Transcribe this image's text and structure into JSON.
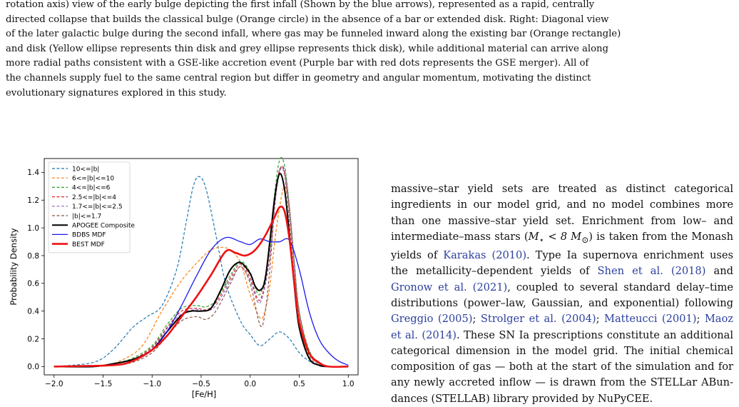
{
  "caption": {
    "lines": [
      "rotation axis) view of the early bulge depicting the first infall (Shown by the blue arrows), represented as a rapid, centrally",
      "directed collapse that builds the classical bulge (Orange circle) in the absence of a bar or extended disk. Right: Diagonal view",
      "of the later galactic bulge during the second infall, where gas may be funneled inward along the existing bar (Orange rectangle)",
      "and disk (Yellow ellipse represents thin disk and grey ellipse represents thick disk), while additional material can arrive along",
      "more radial paths consistent with a GSE-like accretion event (Purple bar with red dots represents the GSE merger). All of",
      "the channels supply fuel to the same central region but differ in geometry and angular momentum, motivating the distinct",
      "evolutionary signatures explored in this study."
    ]
  },
  "body_text": {
    "p1": "massive–star yield sets are treated as distinct categori­cal ingredients in our model grid, and no model combines more than one massive–star yield set. Enrichment from low– and intermediate–mass stars (",
    "p1_math": "M",
    "p1_sub": "⋆",
    "p1_math2": " < 8 M",
    "p1_sub2": "⊙",
    "p1b": ") is taken from the Monash yields of ",
    "c1": "Karakas",
    "c1y": " (2010)",
    "p1c": ". Type Ia supernova enrichment uses the metallicity–dependent yields of ",
    "c2": "Shen et al.",
    "c2y": " (2018)",
    "p1d": " and ",
    "c3": "Gronow et al.",
    "c3y": " (2021)",
    "p1e": ", coupled to several standard delay–time distributions (power–law, Gaussian, and exponential) following ",
    "c4": "Greg­gio",
    "c4y": " (2005)",
    "p1f": "; ",
    "c5": "Strolger et al.",
    "c5y": " (2004)",
    "p1g": "; ",
    "c6": "Matteucci",
    "c6y": " (2001)",
    "p1h": "; ",
    "c7": "Maoz et al.",
    "c7y": " (2014)",
    "p1i": ". These SN Ia prescriptions consti­tute an additional categorical dimension in the model grid. The initial chemical composition of gas — both at the start of the simulation and for any newly ac­creted inflow — is drawn from the STELLar ABun­dances (STELLAB) library provided by NuPyCEE."
  },
  "chart_data": {
    "type": "line",
    "xlabel": "[Fe/H]",
    "ylabel": "Probability Density",
    "xlim": [
      -2.1,
      1.1
    ],
    "ylim": [
      -0.06,
      1.5
    ],
    "xticks": [
      "−2.0",
      "−1.5",
      "−1.0",
      "−0.5",
      "0.0",
      "0.5",
      "1.0"
    ],
    "xtick_values": [
      -2.0,
      -1.5,
      -1.0,
      -0.5,
      0.0,
      0.5,
      1.0
    ],
    "yticks": [
      "0.0",
      "0.2",
      "0.4",
      "0.6",
      "0.8",
      "1.0",
      "1.2",
      "1.4"
    ],
    "ytick_values": [
      0.0,
      0.2,
      0.4,
      0.6,
      0.8,
      1.0,
      1.2,
      1.4
    ],
    "grid": false,
    "legend_position": "top-left",
    "series": [
      {
        "name": "10<=|b|",
        "color": "#1f77b4",
        "dashed": true,
        "width": 1.2,
        "x": [
          -2.0,
          -1.6,
          -1.4,
          -1.2,
          -1.05,
          -0.9,
          -0.75,
          -0.65,
          -0.58,
          -0.52,
          -0.45,
          -0.35,
          -0.25,
          -0.1,
          0.0,
          0.1,
          0.2,
          0.3,
          0.4,
          0.5,
          0.6,
          0.7,
          0.8,
          1.0
        ],
        "y": [
          0.0,
          0.03,
          0.12,
          0.28,
          0.36,
          0.44,
          0.7,
          1.05,
          1.3,
          1.37,
          1.28,
          0.95,
          0.6,
          0.33,
          0.23,
          0.15,
          0.2,
          0.25,
          0.2,
          0.1,
          0.04,
          0.01,
          0.0,
          0.0
        ]
      },
      {
        "name": "6<=|b|<=10",
        "color": "#ff7f0e",
        "dashed": true,
        "width": 1.2,
        "x": [
          -2.0,
          -1.5,
          -1.3,
          -1.1,
          -0.9,
          -0.7,
          -0.5,
          -0.4,
          -0.3,
          -0.2,
          -0.1,
          0.0,
          0.1,
          0.15,
          0.2,
          0.25,
          0.3,
          0.35,
          0.4,
          0.45,
          0.5,
          0.6,
          0.7,
          0.8,
          1.0
        ],
        "y": [
          0.0,
          0.01,
          0.05,
          0.15,
          0.4,
          0.62,
          0.78,
          0.84,
          0.86,
          0.84,
          0.75,
          0.52,
          0.35,
          0.4,
          0.58,
          0.9,
          1.15,
          1.3,
          1.15,
          0.75,
          0.4,
          0.1,
          0.02,
          0.0,
          0.0
        ]
      },
      {
        "name": "4<=|b|<=6",
        "color": "#2ca02c",
        "dashed": true,
        "width": 1.2,
        "x": [
          -2.0,
          -1.6,
          -1.4,
          -1.2,
          -1.0,
          -0.85,
          -0.7,
          -0.55,
          -0.45,
          -0.35,
          -0.2,
          -0.1,
          0.0,
          0.1,
          0.2,
          0.25,
          0.3,
          0.35,
          0.4,
          0.45,
          0.5,
          0.6,
          0.7,
          0.8,
          1.0
        ],
        "y": [
          0.0,
          0.0,
          0.02,
          0.06,
          0.15,
          0.3,
          0.42,
          0.44,
          0.43,
          0.48,
          0.66,
          0.76,
          0.68,
          0.52,
          0.85,
          1.25,
          1.49,
          1.45,
          1.15,
          0.75,
          0.4,
          0.12,
          0.03,
          0.0,
          0.0
        ]
      },
      {
        "name": "2.5<=|b|<=4",
        "color": "#d62728",
        "dashed": true,
        "width": 1.2,
        "x": [
          -2.0,
          -1.6,
          -1.4,
          -1.2,
          -1.0,
          -0.85,
          -0.7,
          -0.55,
          -0.45,
          -0.35,
          -0.2,
          -0.1,
          0.0,
          0.1,
          0.2,
          0.25,
          0.3,
          0.35,
          0.4,
          0.45,
          0.5,
          0.6,
          0.7,
          0.8,
          1.0
        ],
        "y": [
          0.0,
          0.0,
          0.02,
          0.05,
          0.14,
          0.28,
          0.4,
          0.42,
          0.41,
          0.46,
          0.64,
          0.74,
          0.64,
          0.48,
          0.8,
          1.2,
          1.42,
          1.4,
          1.12,
          0.72,
          0.38,
          0.11,
          0.02,
          0.0,
          0.0
        ]
      },
      {
        "name": "1.7<=|b|<=2.5",
        "color": "#9467bd",
        "dashed": true,
        "width": 1.2,
        "x": [
          -2.0,
          -1.6,
          -1.4,
          -1.2,
          -1.0,
          -0.85,
          -0.7,
          -0.55,
          -0.45,
          -0.35,
          -0.2,
          -0.1,
          0.0,
          0.1,
          0.2,
          0.25,
          0.3,
          0.35,
          0.4,
          0.45,
          0.5,
          0.6,
          0.7,
          0.8,
          1.0
        ],
        "y": [
          0.0,
          0.0,
          0.02,
          0.05,
          0.13,
          0.27,
          0.38,
          0.41,
          0.4,
          0.44,
          0.62,
          0.72,
          0.62,
          0.46,
          0.78,
          1.18,
          1.4,
          1.42,
          1.15,
          0.74,
          0.38,
          0.1,
          0.02,
          0.0,
          0.0
        ]
      },
      {
        "name": "|b|<=1.7",
        "color": "#8c564b",
        "dashed": true,
        "width": 1.2,
        "x": [
          -2.0,
          -1.6,
          -1.4,
          -1.2,
          -1.0,
          -0.85,
          -0.7,
          -0.55,
          -0.45,
          -0.35,
          -0.2,
          -0.1,
          0.0,
          0.1,
          0.15,
          0.2,
          0.25,
          0.3,
          0.35,
          0.4,
          0.45,
          0.5,
          0.6,
          0.7,
          0.8,
          1.0
        ],
        "y": [
          0.0,
          0.0,
          0.01,
          0.03,
          0.1,
          0.22,
          0.33,
          0.36,
          0.34,
          0.4,
          0.6,
          0.72,
          0.6,
          0.3,
          0.38,
          0.7,
          1.15,
          1.42,
          1.38,
          1.05,
          0.65,
          0.32,
          0.08,
          0.01,
          0.0,
          0.0
        ]
      },
      {
        "name": "APOGEE Composite",
        "color": "#000000",
        "dashed": false,
        "width": 2.0,
        "x": [
          -2.0,
          -1.6,
          -1.4,
          -1.2,
          -1.0,
          -0.85,
          -0.7,
          -0.6,
          -0.5,
          -0.4,
          -0.3,
          -0.2,
          -0.1,
          0.0,
          0.05,
          0.1,
          0.15,
          0.2,
          0.25,
          0.3,
          0.35,
          0.4,
          0.45,
          0.5,
          0.6,
          0.7,
          0.8,
          1.0
        ],
        "y": [
          0.0,
          0.0,
          0.02,
          0.05,
          0.12,
          0.25,
          0.37,
          0.4,
          0.4,
          0.42,
          0.55,
          0.7,
          0.75,
          0.67,
          0.58,
          0.55,
          0.62,
          0.9,
          1.22,
          1.39,
          1.28,
          0.95,
          0.58,
          0.28,
          0.06,
          0.01,
          0.0,
          0.0
        ]
      },
      {
        "name": "BDBS MDF",
        "color": "#1a1aee",
        "dashed": false,
        "width": 1.3,
        "x": [
          -2.0,
          -1.4,
          -1.2,
          -1.0,
          -0.85,
          -0.7,
          -0.55,
          -0.4,
          -0.25,
          -0.1,
          0.0,
          0.1,
          0.2,
          0.3,
          0.4,
          0.5,
          0.6,
          0.7,
          0.8,
          0.9,
          1.0
        ],
        "y": [
          0.0,
          0.01,
          0.04,
          0.12,
          0.25,
          0.44,
          0.65,
          0.84,
          0.93,
          0.9,
          0.88,
          0.92,
          0.9,
          0.9,
          0.91,
          0.7,
          0.4,
          0.2,
          0.1,
          0.04,
          0.01
        ]
      },
      {
        "name": "BEST MDF",
        "color": "#ee1111",
        "dashed": false,
        "width": 2.6,
        "x": [
          -2.0,
          -1.4,
          -1.2,
          -1.0,
          -0.85,
          -0.7,
          -0.55,
          -0.4,
          -0.25,
          -0.15,
          -0.05,
          0.05,
          0.15,
          0.25,
          0.3,
          0.35,
          0.4,
          0.45,
          0.5,
          0.6,
          0.7,
          0.8,
          1.0
        ],
        "y": [
          0.0,
          0.01,
          0.04,
          0.12,
          0.22,
          0.36,
          0.5,
          0.66,
          0.83,
          0.82,
          0.8,
          0.84,
          0.94,
          1.08,
          1.15,
          1.12,
          0.92,
          0.6,
          0.32,
          0.1,
          0.03,
          0.0,
          0.0
        ]
      }
    ]
  }
}
